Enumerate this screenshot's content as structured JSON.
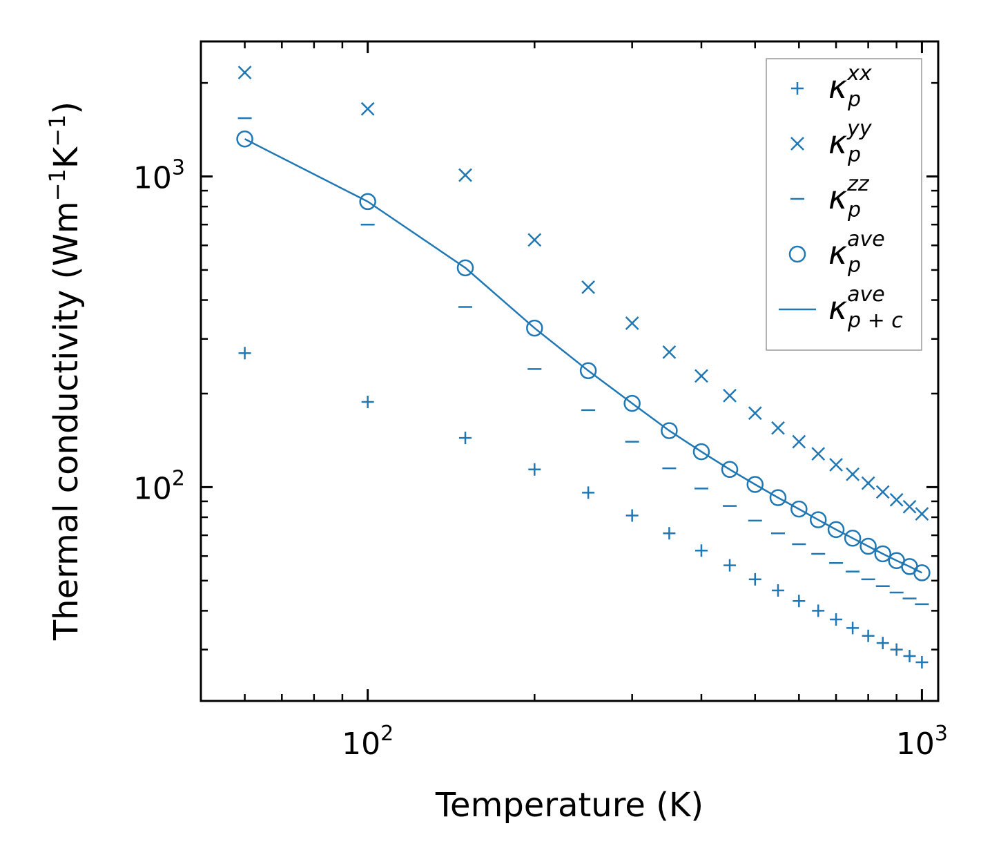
{
  "chart_data": {
    "type": "scatter",
    "xscale": "log",
    "yscale": "log",
    "xlim": [
      50,
      1070
    ],
    "ylim": [
      20.5,
      2720
    ],
    "xlabel": "Temperature (K)",
    "ylabel": {
      "text": "Thermal conductivity (Wm",
      "sup1": "−1",
      "mid": "K",
      "sup2": "−1",
      "end": ")"
    },
    "x_ticks": [
      {
        "base": "10",
        "exp": "2",
        "value": 100
      },
      {
        "base": "10",
        "exp": "3",
        "value": 1000
      }
    ],
    "y_ticks": [
      {
        "base": "10",
        "exp": "2",
        "value": 100
      },
      {
        "base": "10",
        "exp": "3",
        "value": 1000
      }
    ],
    "color": "#1f77b4",
    "x": [
      60,
      100,
      150,
      200,
      250,
      300,
      350,
      400,
      450,
      500,
      550,
      600,
      650,
      700,
      750,
      800,
      850,
      900,
      950,
      1000
    ],
    "series": [
      {
        "name": "kxx",
        "marker": "plus",
        "legend": {
          "base": "κ",
          "sub": "p",
          "sup": "xx"
        },
        "values": [
          270,
          188,
          144,
          114,
          96,
          81,
          71,
          62.5,
          56,
          50.5,
          46.5,
          43,
          40,
          37.5,
          35.2,
          33.2,
          31.5,
          30,
          28.6,
          27.3
        ]
      },
      {
        "name": "kyy",
        "marker": "x",
        "legend": {
          "base": "κ",
          "sub": "p",
          "sup": "yy"
        },
        "values": [
          2160,
          1650,
          1010,
          625,
          440,
          337,
          272,
          228,
          197,
          173,
          155,
          140,
          128,
          118,
          110,
          103,
          96.5,
          91,
          86.5,
          82
        ]
      },
      {
        "name": "kzz",
        "marker": "hline",
        "legend": {
          "base": "κ",
          "sub": "p",
          "sup": "zz"
        },
        "values": [
          1540,
          700,
          380,
          240,
          177,
          140,
          115,
          99,
          87,
          78,
          71,
          65.5,
          61,
          57,
          53.5,
          50.5,
          48,
          45.8,
          43.8,
          42
        ]
      },
      {
        "name": "kave",
        "marker": "circle",
        "legend": {
          "base": "κ",
          "sub": "p",
          "sup": "ave"
        },
        "values": [
          1320,
          830,
          508,
          325,
          237,
          186,
          152,
          130,
          114,
          102,
          92.5,
          85,
          78.5,
          73,
          68.5,
          64.5,
          61,
          58,
          55.5,
          53
        ]
      },
      {
        "name": "kave_pc",
        "marker": "line",
        "legend": {
          "base": "κ",
          "sub": "p + c",
          "sup": "ave"
        },
        "values": [
          1320,
          830,
          508,
          325,
          237,
          186,
          152,
          130,
          114,
          102,
          92.5,
          85,
          78.5,
          73,
          68.5,
          64.5,
          61,
          58,
          55.5,
          53
        ]
      }
    ],
    "legend_position": "top-right",
    "grid": false
  }
}
